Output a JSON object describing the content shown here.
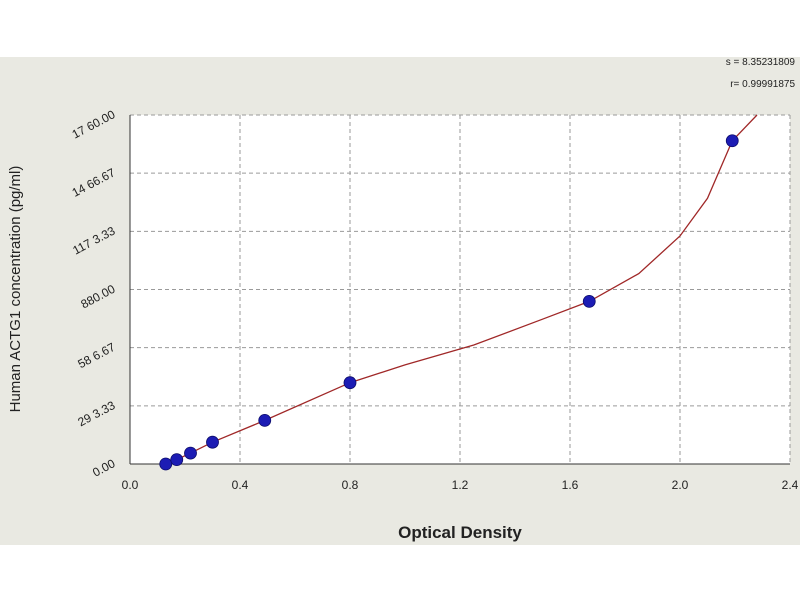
{
  "chart_data": {
    "type": "scatter",
    "title": "",
    "xlabel": "Optical Density",
    "ylabel": "Human ACTG1 concentration (pg/ml)",
    "xlim": [
      0.0,
      2.4
    ],
    "ylim": [
      0.0,
      1760.0
    ],
    "x_ticks": [
      0.0,
      0.4,
      0.8,
      1.2,
      1.6,
      2.0,
      2.4
    ],
    "x_tick_labels": [
      "0.0",
      "0.4",
      "0.8",
      "1.2",
      "1.6",
      "2.0",
      "2.4"
    ],
    "y_ticks": [
      0.0,
      293.33,
      586.67,
      880.0,
      1173.33,
      1466.67,
      1760.0
    ],
    "y_tick_labels": [
      "0.00",
      "29 3.33",
      "58 6.67",
      "880.00",
      "117 3.33",
      "14 66.67",
      "17 60.00"
    ],
    "grid": true,
    "series": [
      {
        "type": "scatter",
        "color": "#1c1cb4",
        "points": [
          {
            "x": 0.13,
            "y": 0
          },
          {
            "x": 0.17,
            "y": 22
          },
          {
            "x": 0.22,
            "y": 55
          },
          {
            "x": 0.3,
            "y": 110
          },
          {
            "x": 0.49,
            "y": 220
          },
          {
            "x": 0.8,
            "y": 410
          },
          {
            "x": 1.67,
            "y": 820
          },
          {
            "x": 2.19,
            "y": 1630
          }
        ]
      },
      {
        "type": "line",
        "color": "#a02828",
        "curve": [
          {
            "x": 0.13,
            "y": 0
          },
          {
            "x": 0.17,
            "y": 22
          },
          {
            "x": 0.22,
            "y": 55
          },
          {
            "x": 0.3,
            "y": 110
          },
          {
            "x": 0.49,
            "y": 220
          },
          {
            "x": 0.8,
            "y": 410
          },
          {
            "x": 1.0,
            "y": 500
          },
          {
            "x": 1.25,
            "y": 600
          },
          {
            "x": 1.5,
            "y": 730
          },
          {
            "x": 1.67,
            "y": 820
          },
          {
            "x": 1.85,
            "y": 960
          },
          {
            "x": 2.0,
            "y": 1150
          },
          {
            "x": 2.1,
            "y": 1340
          },
          {
            "x": 2.19,
            "y": 1630
          },
          {
            "x": 2.28,
            "y": 1760
          }
        ]
      }
    ],
    "stats": {
      "s_label": "s = 8.35231809",
      "r_label": "r= 0.99991875"
    }
  }
}
